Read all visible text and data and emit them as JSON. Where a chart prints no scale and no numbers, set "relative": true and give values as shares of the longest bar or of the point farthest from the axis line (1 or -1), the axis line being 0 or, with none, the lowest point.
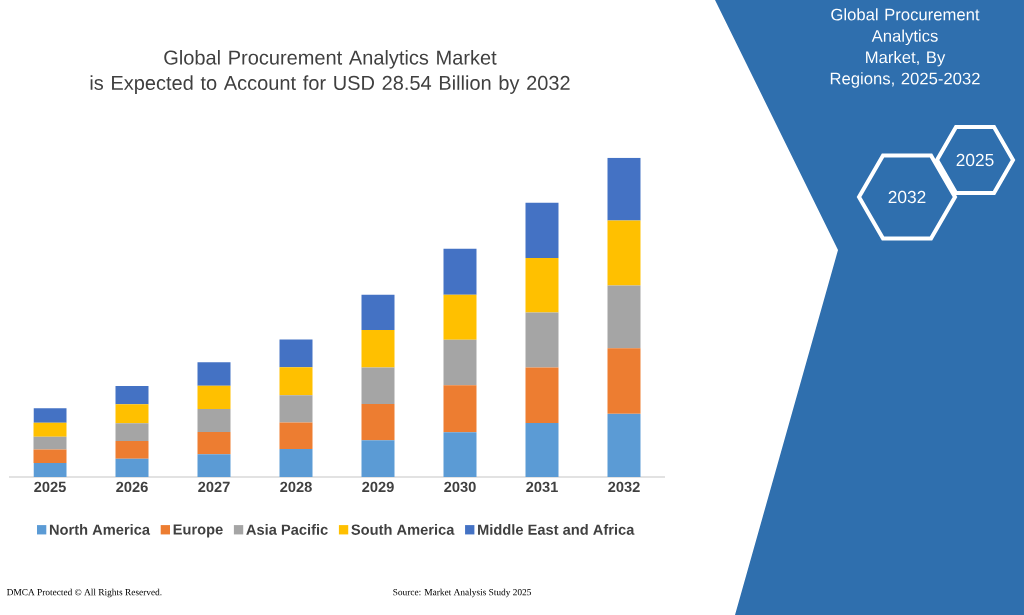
{
  "chart_data": {
    "type": "bar",
    "title": "Global Procurement Analytics Market\nis Expected to Account for USD 28.54 Billion by 2032",
    "categories": [
      "2025",
      "2026",
      "2027",
      "2028",
      "2029",
      "2030",
      "2031",
      "2032"
    ],
    "stacked": true,
    "relative": true,
    "legend": "bottom",
    "series": [
      {
        "name": "North America",
        "color": "#5b9bd5",
        "values": [
          0.044,
          0.057,
          0.071,
          0.088,
          0.115,
          0.14,
          0.169,
          0.198
        ]
      },
      {
        "name": "Europe",
        "color": "#ed7d31",
        "values": [
          0.042,
          0.056,
          0.07,
          0.083,
          0.114,
          0.147,
          0.174,
          0.205
        ]
      },
      {
        "name": "Asia Pacific",
        "color": "#a5a5a5",
        "values": [
          0.04,
          0.055,
          0.072,
          0.085,
          0.114,
          0.143,
          0.172,
          0.197
        ]
      },
      {
        "name": "South America",
        "color": "#ffc000",
        "values": [
          0.044,
          0.06,
          0.073,
          0.088,
          0.117,
          0.141,
          0.171,
          0.203
        ]
      },
      {
        "name": "Middle East and Africa",
        "color": "#4472c4",
        "values": [
          0.045,
          0.057,
          0.073,
          0.087,
          0.111,
          0.144,
          0.173,
          0.197
        ]
      }
    ],
    "annotations": [
      "Global Procurement Analytics\nMarket, By Regions, 2025-2032",
      "2025",
      "2032",
      "DMCA Protected © All Rights Reserved.",
      "Source: Market Analysis Study 2025"
    ]
  }
}
